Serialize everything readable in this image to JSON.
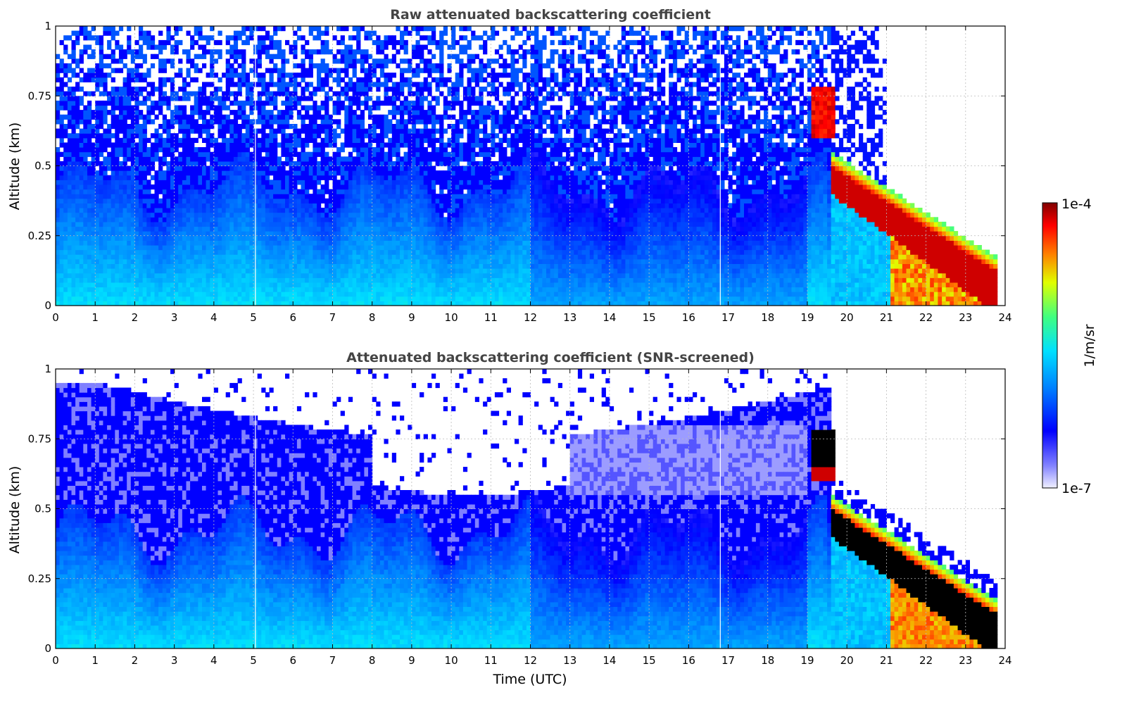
{
  "chart_data": [
    {
      "type": "heatmap",
      "title": "Raw attenuated backscattering coefficient",
      "xlabel": "",
      "ylabel": "Altitude (km)",
      "xlim": [
        0,
        24
      ],
      "ylim": [
        0,
        1
      ],
      "xticks": [
        0,
        1,
        2,
        3,
        4,
        5,
        6,
        7,
        8,
        9,
        10,
        11,
        12,
        13,
        14,
        15,
        16,
        17,
        18,
        19,
        20,
        21,
        22,
        23,
        24
      ],
      "xtick_labels": [
        "0",
        "1",
        "2",
        "3",
        "4",
        "5",
        "6",
        "7",
        "8",
        "9",
        "10",
        "11",
        "12",
        "13",
        "14",
        "15",
        "16",
        "17",
        "18",
        "19",
        "20",
        "21",
        "22",
        "23",
        "24"
      ],
      "yticks": [
        0,
        0.25,
        0.5,
        0.75,
        1
      ],
      "ytick_labels": [
        "0",
        "0.25",
        "0.5",
        "0.75",
        "1"
      ],
      "grid": true,
      "screened": false,
      "data_end_hour": 23.8
    },
    {
      "type": "heatmap",
      "title": "Attenuated backscattering coefficient (SNR-screened)",
      "xlabel": "Time (UTC)",
      "ylabel": "Altitude (km)",
      "xlim": [
        0,
        24
      ],
      "ylim": [
        0,
        1
      ],
      "xticks": [
        0,
        1,
        2,
        3,
        4,
        5,
        6,
        7,
        8,
        9,
        10,
        11,
        12,
        13,
        14,
        15,
        16,
        17,
        18,
        19,
        20,
        21,
        22,
        23,
        24
      ],
      "xtick_labels": [
        "0",
        "1",
        "2",
        "3",
        "4",
        "5",
        "6",
        "7",
        "8",
        "9",
        "10",
        "11",
        "12",
        "13",
        "14",
        "15",
        "16",
        "17",
        "18",
        "19",
        "20",
        "21",
        "22",
        "23",
        "24"
      ],
      "yticks": [
        0,
        0.25,
        0.5,
        0.75,
        1
      ],
      "ytick_labels": [
        "0",
        "0.25",
        "0.5",
        "0.75",
        "1"
      ],
      "grid": true,
      "screened": true,
      "data_end_hour": 23.8
    }
  ],
  "colorbar": {
    "label": "1/m/sr",
    "max_label": "1e-4",
    "min_label": "1e-7",
    "scale": "log",
    "colormap": "jet",
    "range": [
      1e-07,
      0.0001
    ]
  },
  "colors": {
    "title": "#444444",
    "grid": "#bbbbbb",
    "saturated": "#000000"
  }
}
